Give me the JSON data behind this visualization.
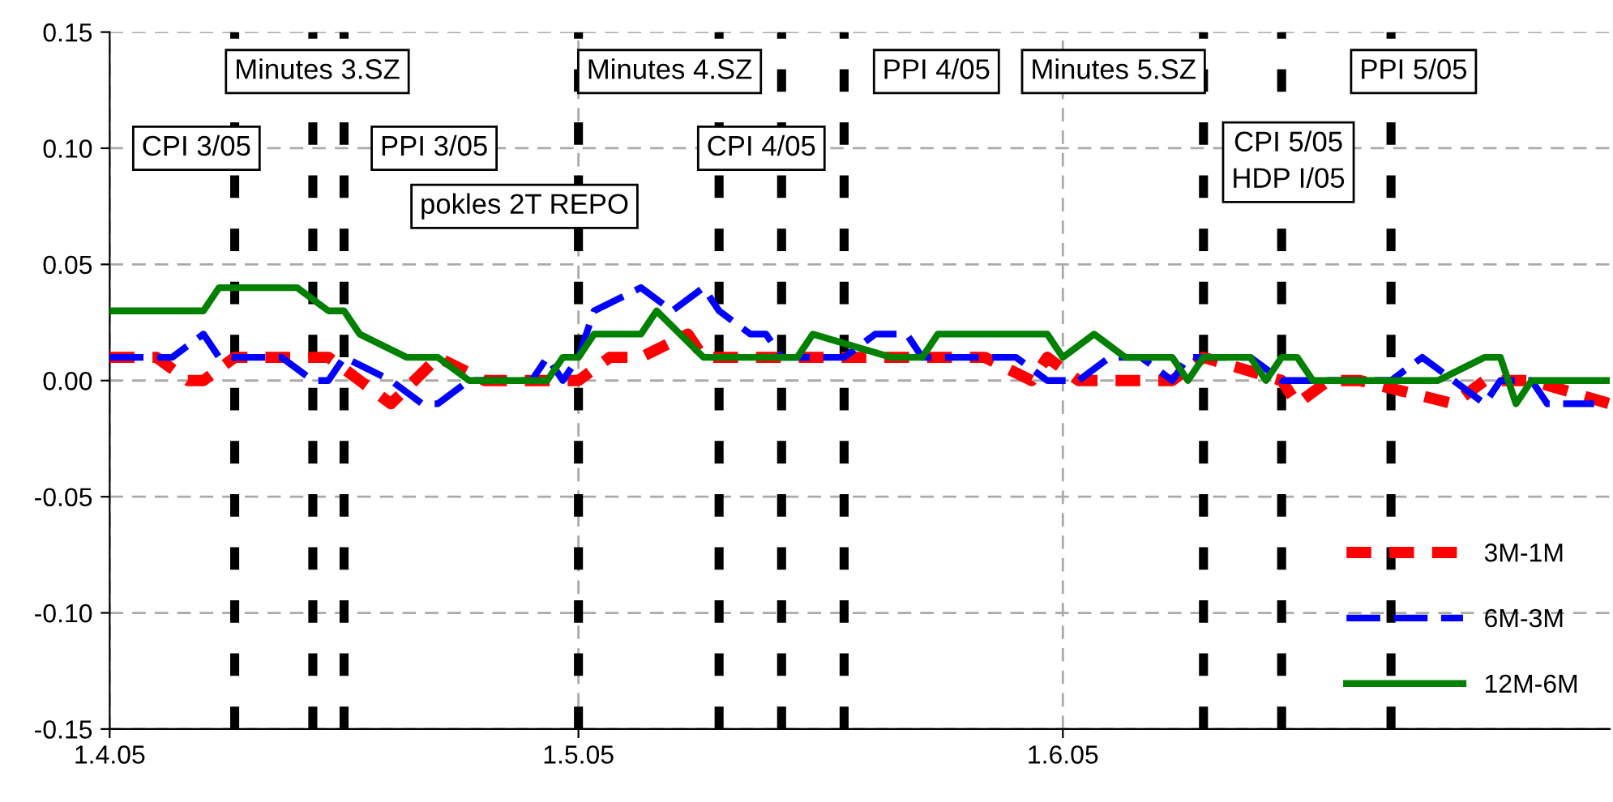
{
  "chart_data": {
    "type": "line",
    "xlim": [
      "2005-04-01",
      "2005-07-06"
    ],
    "ylim": [
      -0.15,
      0.15
    ],
    "xticks": [
      {
        "value": "2005-04-01",
        "label": "1.4.05"
      },
      {
        "value": "2005-05-01",
        "label": "1.5.05"
      },
      {
        "value": "2005-06-01",
        "label": "1.6.05"
      }
    ],
    "yticks": [
      {
        "value": -0.15,
        "label": "-0.15"
      },
      {
        "value": -0.1,
        "label": "-0.10"
      },
      {
        "value": -0.05,
        "label": "-0.05"
      },
      {
        "value": 0,
        "label": "0.00"
      },
      {
        "value": 0.05,
        "label": "0.05"
      },
      {
        "value": 0.1,
        "label": "0.10"
      },
      {
        "value": 0.15,
        "label": "0.15"
      }
    ],
    "grid": true,
    "legend": "bottom right",
    "series": [
      {
        "name": "3M-1M",
        "color": "#ff0000",
        "line_style": "dotted",
        "x": [
          "2005-04-01",
          "2005-04-04",
          "2005-04-06",
          "2005-04-07",
          "2005-04-09",
          "2005-04-11",
          "2005-04-14",
          "2005-04-15",
          "2005-04-17",
          "2005-04-19",
          "2005-04-22",
          "2005-04-25",
          "2005-04-26",
          "2005-04-30",
          "2005-05-01",
          "2005-05-03",
          "2005-05-05",
          "2005-05-08",
          "2005-05-09",
          "2005-05-13",
          "2005-05-15",
          "2005-05-16",
          "2005-05-19",
          "2005-05-21",
          "2005-05-25",
          "2005-05-27",
          "2005-05-30",
          "2005-05-31",
          "2005-06-02",
          "2005-06-07",
          "2005-06-08",
          "2005-06-10",
          "2005-06-15",
          "2005-06-16",
          "2005-06-18",
          "2005-06-20",
          "2005-06-26",
          "2005-06-28",
          "2005-06-30",
          "2005-07-01",
          "2005-07-06"
        ],
        "values": [
          0.01,
          0.01,
          0.0,
          0.0,
          0.01,
          0.01,
          0.01,
          0.01,
          0.0,
          -0.01,
          0.01,
          0.0,
          0.0,
          0.0,
          0.0,
          0.01,
          0.01,
          0.02,
          0.01,
          0.01,
          0.01,
          0.01,
          0.01,
          0.01,
          0.01,
          0.01,
          0.0,
          0.01,
          0.0,
          0.0,
          0.0,
          0.01,
          0.0,
          -0.01,
          0.0,
          0.0,
          -0.01,
          0.0,
          0.0,
          0.0,
          -0.01
        ]
      },
      {
        "name": "6M-3M",
        "color": "#0000ff",
        "line_style": "dashed",
        "x": [
          "2005-04-01",
          "2005-04-05",
          "2005-04-07",
          "2005-04-08",
          "2005-04-10",
          "2005-04-12",
          "2005-04-14",
          "2005-04-15",
          "2005-04-16",
          "2005-04-19",
          "2005-04-21",
          "2005-04-22",
          "2005-04-24",
          "2005-04-28",
          "2005-04-29",
          "2005-04-30",
          "2005-05-01",
          "2005-05-02",
          "2005-05-05",
          "2005-05-07",
          "2005-05-09",
          "2005-05-10",
          "2005-05-12",
          "2005-05-13",
          "2005-05-14",
          "2005-05-16",
          "2005-05-18",
          "2005-05-20",
          "2005-05-22",
          "2005-05-23",
          "2005-05-25",
          "2005-05-29",
          "2005-05-31",
          "2005-06-01",
          "2005-06-02",
          "2005-06-04",
          "2005-06-06",
          "2005-06-08",
          "2005-06-09",
          "2005-06-11",
          "2005-06-13",
          "2005-06-15",
          "2005-06-16",
          "2005-06-22",
          "2005-06-24",
          "2005-06-26",
          "2005-06-28",
          "2005-06-29",
          "2005-07-01",
          "2005-07-02",
          "2005-07-05"
        ],
        "values": [
          0.01,
          0.01,
          0.02,
          0.01,
          0.01,
          0.01,
          0.0,
          0.0,
          0.01,
          0.0,
          -0.01,
          -0.01,
          0.0,
          0.0,
          0.01,
          0.0,
          0.01,
          0.03,
          0.04,
          0.03,
          0.04,
          0.03,
          0.02,
          0.02,
          0.01,
          0.01,
          0.01,
          0.02,
          0.02,
          0.01,
          0.01,
          0.01,
          0.0,
          0.0,
          0.0,
          0.01,
          0.01,
          0.0,
          0.01,
          0.01,
          0.01,
          0.0,
          0.0,
          0.0,
          0.01,
          0.0,
          -0.01,
          0.0,
          0.0,
          -0.01,
          -0.01
        ]
      },
      {
        "name": "12M-6M",
        "color": "#008000",
        "line_style": "solid",
        "x": [
          "2005-04-01",
          "2005-04-07",
          "2005-04-08",
          "2005-04-13",
          "2005-04-15",
          "2005-04-16",
          "2005-04-17",
          "2005-04-20",
          "2005-04-22",
          "2005-04-24",
          "2005-04-29",
          "2005-04-30",
          "2005-05-01",
          "2005-05-02",
          "2005-05-05",
          "2005-05-06",
          "2005-05-09",
          "2005-05-15",
          "2005-05-16",
          "2005-05-21",
          "2005-05-23",
          "2005-05-24",
          "2005-05-31",
          "2005-06-01",
          "2005-06-03",
          "2005-06-05",
          "2005-06-08",
          "2005-06-09",
          "2005-06-10",
          "2005-06-13",
          "2005-06-14",
          "2005-06-15",
          "2005-06-16",
          "2005-06-17",
          "2005-06-25",
          "2005-06-28",
          "2005-06-29",
          "2005-06-30",
          "2005-07-01",
          "2005-07-06"
        ],
        "values": [
          0.03,
          0.03,
          0.04,
          0.04,
          0.03,
          0.03,
          0.02,
          0.01,
          0.01,
          0.0,
          0.0,
          0.01,
          0.01,
          0.02,
          0.02,
          0.03,
          0.01,
          0.01,
          0.02,
          0.01,
          0.01,
          0.02,
          0.02,
          0.01,
          0.02,
          0.01,
          0.01,
          0.0,
          0.01,
          0.01,
          0.0,
          0.01,
          0.01,
          0.0,
          0.0,
          0.01,
          0.01,
          -0.01,
          0.0,
          0.0
        ]
      }
    ],
    "ref_lines": [
      {
        "axis": "x",
        "value": "2005-04-09",
        "label": "CPI 3/05",
        "color": "#000000",
        "line_style": "dotted"
      },
      {
        "axis": "x",
        "value": "2005-04-14",
        "label": "Minutes 3.SZ",
        "color": "#000000",
        "line_style": "dotted"
      },
      {
        "axis": "x",
        "value": "2005-04-16",
        "label": "PPI 3/05",
        "color": "#000000",
        "line_style": "dotted"
      },
      {
        "axis": "x",
        "value": "2005-05-01",
        "label": "pokles 2T REPO",
        "color": "#000000",
        "line_style": "dotted"
      },
      {
        "axis": "x",
        "value": "2005-05-10",
        "label": "Minutes 4.SZ",
        "color": "#000000",
        "line_style": "dotted"
      },
      {
        "axis": "x",
        "value": "2005-05-14",
        "label": "CPI 4/05",
        "color": "#000000",
        "line_style": "dotted"
      },
      {
        "axis": "x",
        "value": "2005-05-18",
        "label": "PPI 4/05",
        "color": "#000000",
        "line_style": "dotted"
      },
      {
        "axis": "x",
        "value": "2005-06-10",
        "label": "Minutes 5.SZ",
        "color": "#000000",
        "line_style": "dotted"
      },
      {
        "axis": "x",
        "value": "2005-06-15",
        "label": "CPI 5/05\nHDP I/05",
        "color": "#000000",
        "line_style": "dotted"
      },
      {
        "axis": "x",
        "value": "2005-06-22",
        "label": "PPI 5/05",
        "color": "#000000",
        "line_style": "dotted"
      }
    ]
  }
}
